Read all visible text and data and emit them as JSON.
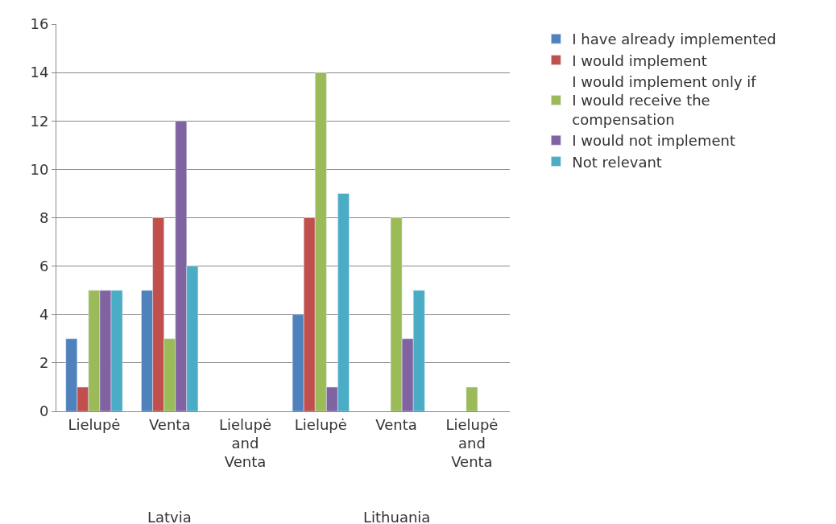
{
  "chart_data": {
    "type": "bar",
    "categories": [
      "Lielupė",
      "Venta",
      "Lielupė and Venta",
      "Lielupė",
      "Venta",
      "Lielupė and Venta"
    ],
    "series": [
      {
        "name": "I have already implemented",
        "color": "#4f81bd",
        "values": [
          3,
          5,
          null,
          4,
          null,
          null
        ]
      },
      {
        "name": "I would implement",
        "color": "#c0504d",
        "values": [
          1,
          8,
          null,
          8,
          null,
          null
        ]
      },
      {
        "name": "I would implement only if I would receive the compensation",
        "color": "#9bbb59",
        "values": [
          5,
          3,
          null,
          14,
          8,
          1
        ]
      },
      {
        "name": "I would not implement",
        "color": "#8064a2",
        "values": [
          5,
          12,
          null,
          1,
          3,
          null
        ]
      },
      {
        "name": "Not relevant",
        "color": "#4bacc6",
        "values": [
          5,
          6,
          null,
          9,
          5,
          null
        ]
      }
    ],
    "annotations": [
      "Latvia",
      "Lithuania"
    ],
    "ylim": [
      0,
      16
    ],
    "yticks": [
      0,
      2,
      4,
      6,
      8,
      10,
      12,
      14,
      16
    ],
    "grid": "y",
    "legend": "right"
  }
}
